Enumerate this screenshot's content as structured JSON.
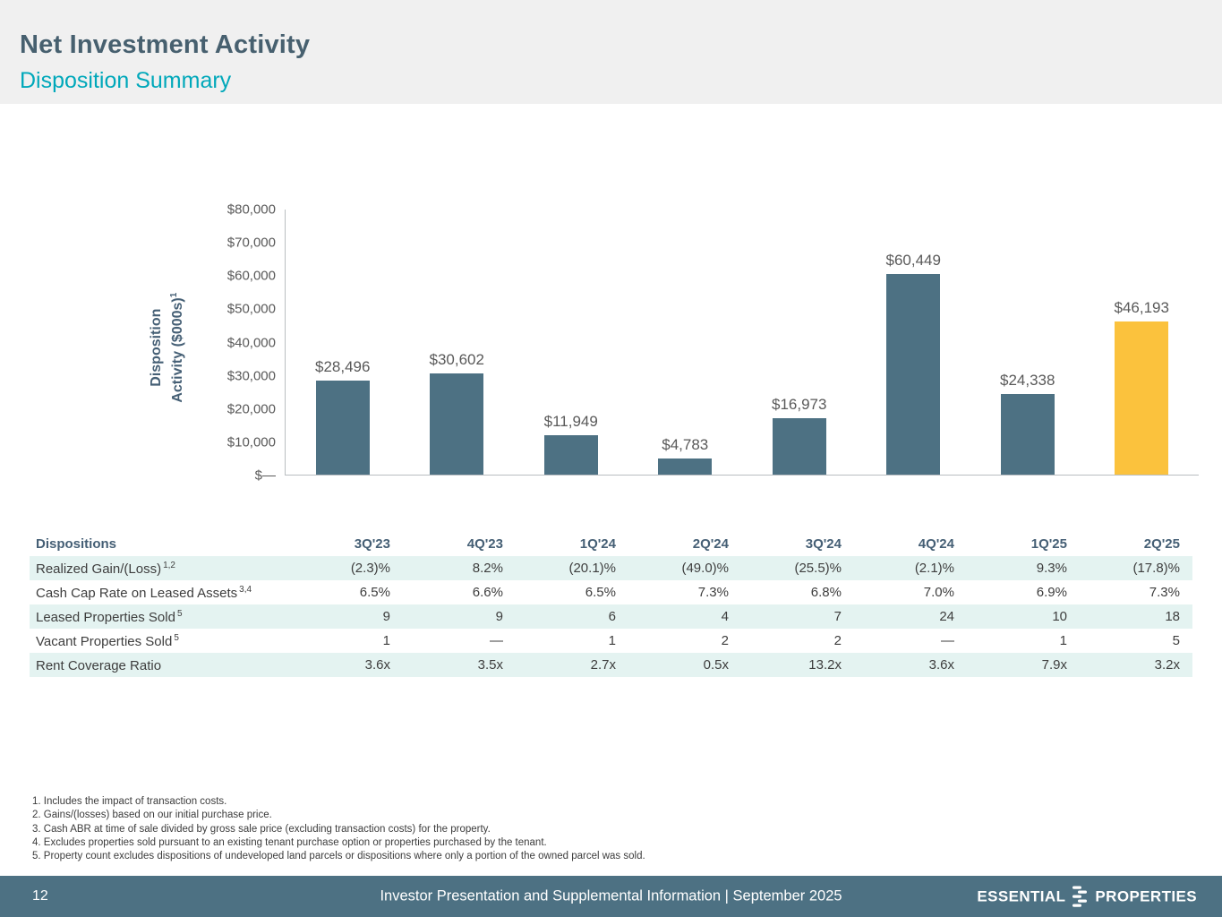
{
  "header": {
    "title": "Net Investment Activity",
    "subtitle": "Disposition Summary"
  },
  "chart_data": {
    "type": "bar",
    "ylabel_line1": "Disposition",
    "ylabel_line2": "Activity ($000s)",
    "ylabel_sup": "1",
    "categories": [
      "3Q'23",
      "4Q'23",
      "1Q'24",
      "2Q'24",
      "3Q'24",
      "4Q'24",
      "1Q'25",
      "2Q'25"
    ],
    "values": [
      28496,
      30602,
      11949,
      4783,
      16973,
      60449,
      24338,
      46193
    ],
    "labels": [
      "$28,496",
      "$30,602",
      "$11,949",
      "$4,783",
      "$16,973",
      "$60,449",
      "$24,338",
      "$46,193"
    ],
    "ylim": [
      0,
      80000
    ],
    "ytick_labels": [
      "$80,000",
      "$70,000",
      "$60,000",
      "$50,000",
      "$40,000",
      "$30,000",
      "$20,000",
      "$10,000",
      "$—"
    ],
    "grid": false,
    "legend": false,
    "bar_color": "#4D7183",
    "highlight_color": "#FBC23D",
    "highlight_index": 7
  },
  "table": {
    "title": "Dispositions",
    "columns": [
      "3Q'23",
      "4Q'23",
      "1Q'24",
      "2Q'24",
      "3Q'24",
      "4Q'24",
      "1Q'25",
      "2Q'25"
    ],
    "rows": [
      {
        "label": "Realized Gain/(Loss)",
        "sup": "1,2",
        "values": [
          "(2.3)%",
          "8.2%",
          "(20.1)%",
          "(49.0)%",
          "(25.5)%",
          "(2.1)%",
          "9.3%",
          "(17.8)%"
        ]
      },
      {
        "label": "Cash Cap Rate on Leased Assets",
        "sup": "3,4",
        "values": [
          "6.5%",
          "6.6%",
          "6.5%",
          "7.3%",
          "6.8%",
          "7.0%",
          "6.9%",
          "7.3%"
        ]
      },
      {
        "label": "Leased Properties Sold",
        "sup": "5",
        "values": [
          "9",
          "9",
          "6",
          "4",
          "7",
          "24",
          "10",
          "18"
        ]
      },
      {
        "label": "Vacant Properties Sold",
        "sup": "5",
        "values": [
          "1",
          "—",
          "1",
          "2",
          "2",
          "—",
          "1",
          "5"
        ]
      },
      {
        "label": "Rent Coverage Ratio",
        "sup": "",
        "values": [
          "3.6x",
          "3.5x",
          "2.7x",
          "0.5x",
          "13.2x",
          "3.6x",
          "7.9x",
          "3.2x"
        ]
      }
    ]
  },
  "footnotes": [
    "1. Includes the impact of transaction costs.",
    "2. Gains/(losses) based on our initial purchase price.",
    "3. Cash ABR at time of sale divided by gross sale price (excluding transaction costs) for the property.",
    "4. Excludes properties sold pursuant to an existing tenant purchase option or properties purchased by the tenant.",
    "5. Property count excludes dispositions of undeveloped land parcels or dispositions where only a portion of the owned parcel was sold."
  ],
  "footer": {
    "page_number": "12",
    "center_text": "Investor Presentation and Supplemental Information |  September 2025",
    "brand_left": "ESSENTIAL",
    "brand_right": "PROPERTIES"
  }
}
